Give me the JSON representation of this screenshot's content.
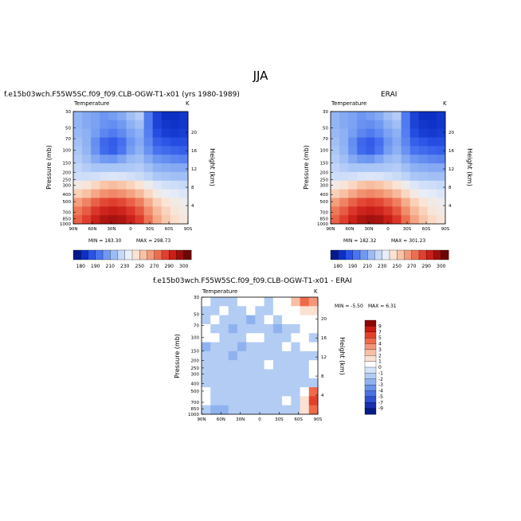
{
  "figure": {
    "title": "JJA",
    "panels": [
      {
        "id": "model",
        "heading": "f.e15b03wch.F55W5SC.f09_f09.CLB-OGW-T1-x01 (yrs 1980-1989)",
        "variable": "Temperature",
        "units": "K",
        "min_label": "MIN = 183.30",
        "max_label": "MAX = 298.73"
      },
      {
        "id": "obs",
        "heading": "ERAI",
        "variable": "Temperature",
        "units": "K",
        "min_label": "MIN = 182.32",
        "max_label": "MAX = 301.23"
      },
      {
        "id": "diff",
        "heading": "f.e15b03wch.F55W5SC.f09_f09.CLB-OGW-T1-x01 - ERAI",
        "variable": "Temperature",
        "units": "K",
        "min_label": "MIN = -5.50",
        "max_label": "MAX = 6.31"
      }
    ],
    "axes": {
      "ylabel": "Pressure (mb)",
      "y2label": "Height (km)",
      "x_ticks": [
        "90N",
        "60N",
        "30N",
        "0",
        "30S",
        "60S",
        "90S"
      ],
      "y_ticks": [
        "30",
        "50",
        "70",
        "100",
        "150",
        "200",
        "250",
        "300",
        "400",
        "500",
        "700",
        "850",
        "1000"
      ],
      "y2_ticks": [
        "4",
        "8",
        "12",
        "16",
        "20"
      ]
    },
    "abs_colorbar": {
      "labels": [
        "180",
        "190",
        "210",
        "230",
        "250",
        "270",
        "290",
        "300"
      ],
      "colors": [
        "#051a8a",
        "#0c2fc4",
        "#2a52e6",
        "#4a74f0",
        "#7099f2",
        "#9cbcf5",
        "#c7d9f8",
        "#e9eef8",
        "#fbe3d2",
        "#f8c2a5",
        "#f39a79",
        "#ec6e50",
        "#e04030",
        "#c81f18",
        "#9c0f0c",
        "#6b0707"
      ]
    },
    "diff_colorbar": {
      "labels": [
        "9",
        "7",
        "5",
        "4",
        "3",
        "2",
        "1",
        "0",
        "-1",
        "-2",
        "-3",
        "-4",
        "-5",
        "-7",
        "-9"
      ],
      "colors": [
        "#8c0606",
        "#c81a12",
        "#e3402b",
        "#ee6a4b",
        "#f5967a",
        "#f8bfa6",
        "#fbe1d2",
        "#ffffff",
        "#d4e3f8",
        "#b3ccf4",
        "#8fb2ef",
        "#6b93ea",
        "#4a72e2",
        "#2f50d2",
        "#1830b0",
        "#061b86"
      ]
    }
  },
  "chart_data": [
    {
      "type": "heatmap",
      "title": "f.e15b03wch.F55W5SC.f09_f09.CLB-OGW-T1-x01 (yrs 1980-1989)",
      "variable": "Temperature",
      "units": "K",
      "x_values": [
        "90N",
        "60N",
        "30N",
        "0",
        "30S",
        "60S",
        "90S"
      ],
      "y_values_mb": [
        30,
        50,
        70,
        100,
        150,
        200,
        250,
        300,
        400,
        500,
        700,
        850,
        1000
      ],
      "z_values": [
        [
          215,
          212,
          210,
          207,
          209,
          212,
          218,
          222,
          200,
          185,
          180,
          180,
          182
        ],
        [
          215,
          212,
          210,
          206,
          205,
          208,
          214,
          218,
          200,
          185,
          182,
          181,
          182
        ],
        [
          216,
          214,
          209,
          203,
          200,
          204,
          210,
          214,
          201,
          188,
          184,
          183,
          184
        ],
        [
          218,
          214,
          205,
          195,
          192,
          197,
          207,
          212,
          203,
          193,
          190,
          188,
          188
        ],
        [
          220,
          215,
          206,
          196,
          193,
          199,
          209,
          214,
          206,
          198,
          196,
          194,
          193
        ],
        [
          222,
          218,
          212,
          208,
          207,
          211,
          216,
          218,
          212,
          207,
          205,
          203,
          202
        ],
        [
          225,
          222,
          220,
          220,
          220,
          220,
          221,
          222,
          218,
          214,
          213,
          212,
          212
        ],
        [
          228,
          228,
          229,
          231,
          232,
          231,
          229,
          227,
          224,
          220,
          219,
          218,
          218
        ],
        [
          240,
          243,
          248,
          253,
          255,
          253,
          249,
          244,
          238,
          232,
          229,
          228,
          226
        ],
        [
          250,
          254,
          260,
          265,
          267,
          265,
          261,
          256,
          248,
          240,
          236,
          234,
          232
        ],
        [
          262,
          268,
          275,
          280,
          282,
          280,
          275,
          269,
          259,
          250,
          244,
          240,
          238
        ],
        [
          270,
          276,
          284,
          289,
          291,
          289,
          284,
          277,
          266,
          256,
          249,
          243,
          240
        ],
        [
          275,
          282,
          290,
          296,
          298,
          296,
          290,
          283,
          271,
          260,
          252,
          246,
          242
        ]
      ],
      "min": 183.3,
      "max": 298.73,
      "xlabel": "",
      "ylabel": "Pressure (mb)",
      "y2label": "Height (km)"
    },
    {
      "type": "heatmap",
      "title": "ERAI",
      "variable": "Temperature",
      "units": "K",
      "x_values": [
        "90N",
        "60N",
        "30N",
        "0",
        "30S",
        "60S",
        "90S"
      ],
      "y_values_mb": [
        30,
        50,
        70,
        100,
        150,
        200,
        250,
        300,
        400,
        500,
        700,
        850,
        1000
      ],
      "z_values": [
        [
          215,
          212,
          210,
          207,
          209,
          212,
          218,
          222,
          200,
          185,
          180,
          180,
          182
        ],
        [
          215,
          212,
          210,
          206,
          205,
          208,
          214,
          218,
          200,
          185,
          182,
          181,
          182
        ],
        [
          216,
          214,
          209,
          203,
          200,
          204,
          210,
          214,
          201,
          188,
          184,
          183,
          184
        ],
        [
          218,
          214,
          205,
          195,
          192,
          197,
          207,
          212,
          203,
          193,
          190,
          188,
          188
        ],
        [
          220,
          215,
          206,
          196,
          193,
          199,
          209,
          214,
          206,
          198,
          196,
          194,
          193
        ],
        [
          222,
          218,
          212,
          208,
          207,
          211,
          216,
          218,
          212,
          207,
          205,
          203,
          202
        ],
        [
          225,
          222,
          220,
          220,
          220,
          220,
          221,
          222,
          218,
          214,
          213,
          212,
          212
        ],
        [
          228,
          228,
          229,
          231,
          232,
          231,
          229,
          227,
          224,
          220,
          219,
          218,
          218
        ],
        [
          240,
          243,
          248,
          253,
          255,
          253,
          249,
          244,
          238,
          232,
          229,
          228,
          226
        ],
        [
          250,
          254,
          260,
          265,
          267,
          265,
          261,
          256,
          248,
          240,
          236,
          234,
          232
        ],
        [
          262,
          268,
          275,
          280,
          282,
          280,
          275,
          269,
          259,
          250,
          244,
          240,
          238
        ],
        [
          270,
          276,
          284,
          289,
          291,
          289,
          284,
          277,
          266,
          256,
          249,
          243,
          240
        ],
        [
          275,
          282,
          290,
          296,
          299,
          297,
          291,
          284,
          272,
          261,
          253,
          247,
          243
        ]
      ],
      "min": 182.32,
      "max": 301.23,
      "xlabel": "",
      "ylabel": "Pressure (mb)",
      "y2label": "Height (km)"
    },
    {
      "type": "heatmap",
      "title": "f.e15b03wch.F55W5SC.f09_f09.CLB-OGW-T1-x01 - ERAI",
      "variable": "Temperature",
      "units": "K",
      "x_values": [
        "90N",
        "60N",
        "30N",
        "0",
        "30S",
        "60S",
        "90S"
      ],
      "y_values_mb": [
        30,
        50,
        70,
        100,
        150,
        200,
        250,
        300,
        400,
        500,
        700,
        850,
        1000
      ],
      "z_values": [
        [
          0,
          -1,
          -1,
          -1,
          0,
          0,
          0,
          -1,
          0,
          1,
          3,
          5,
          4
        ],
        [
          -1,
          -1,
          0,
          -1,
          -1,
          0,
          -1,
          -1,
          0,
          0,
          1,
          2,
          2
        ],
        [
          -1,
          0,
          -1,
          -1,
          -1,
          -2,
          -1,
          0,
          -1,
          0,
          0,
          1,
          1
        ],
        [
          0,
          -1,
          -1,
          -2,
          -1,
          -1,
          -1,
          -1,
          -2,
          -1,
          -1,
          0,
          0
        ],
        [
          1,
          0,
          -1,
          -1,
          -1,
          0,
          0,
          -1,
          -1,
          -1,
          0,
          0,
          -1
        ],
        [
          -2,
          -1,
          -1,
          -1,
          -2,
          -1,
          -1,
          -1,
          -1,
          0,
          -1,
          0,
          0
        ],
        [
          -1,
          -1,
          -1,
          -2,
          -1,
          -1,
          -1,
          -1,
          -1,
          -1,
          -1,
          -1,
          -1
        ],
        [
          -1,
          -1,
          -1,
          -1,
          -1,
          -1,
          -1,
          0,
          -1,
          -1,
          -1,
          -1,
          0
        ],
        [
          -1,
          -1,
          -1,
          -1,
          -1,
          -1,
          -1,
          -1,
          -1,
          -1,
          -1,
          -1,
          0
        ],
        [
          -1,
          -1,
          -1,
          -1,
          -1,
          -1,
          -1,
          -1,
          -1,
          -1,
          -1,
          -1,
          -1
        ],
        [
          0,
          -1,
          -1,
          -1,
          -1,
          -1,
          -1,
          -1,
          -1,
          -1,
          -1,
          1,
          5
        ],
        [
          0,
          -1,
          -1,
          -1,
          -1,
          -1,
          -1,
          -1,
          -1,
          0,
          -1,
          2,
          6
        ],
        [
          -1,
          -2,
          -2,
          -1,
          -1,
          -1,
          -1,
          -1,
          -1,
          -1,
          -1,
          2,
          5
        ]
      ],
      "min": -5.5,
      "max": 6.31,
      "xlabel": "",
      "ylabel": "Pressure (mb)",
      "y2label": "Height (km)"
    }
  ]
}
